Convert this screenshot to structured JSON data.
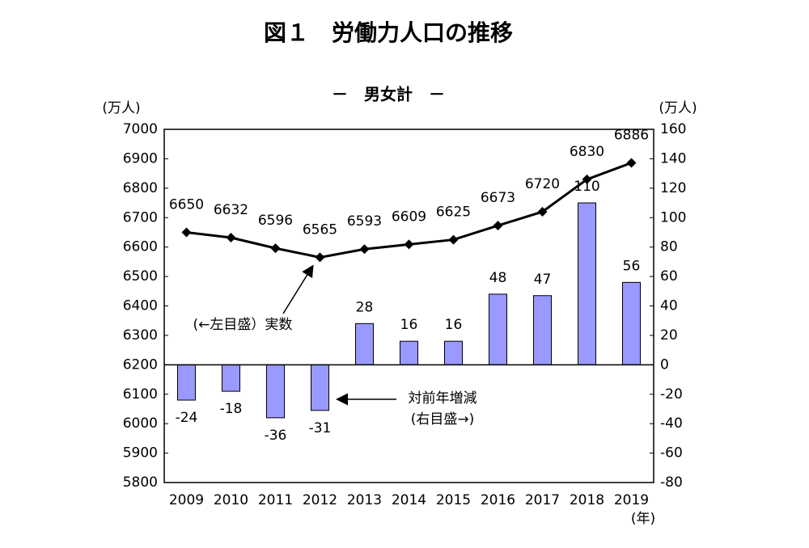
{
  "chart_data": {
    "type": "bar-line",
    "title": "図１　労働力人口の推移",
    "subtitle": "－　男女計　－",
    "ylabel": "(万人)",
    "y2label": "(万人)",
    "xlabel": "(年)",
    "categories": [
      "2009",
      "2010",
      "2011",
      "2012",
      "2013",
      "2014",
      "2015",
      "2016",
      "2017",
      "2018",
      "2019"
    ],
    "series": [
      {
        "type": "line",
        "color": "#000000",
        "axis": "y",
        "values": [
          6650,
          6632,
          6596,
          6565,
          6593,
          6609,
          6625,
          6673,
          6720,
          6830,
          6886
        ]
      },
      {
        "type": "bar",
        "color": "#9999ff",
        "axis": "y2",
        "values": [
          -24,
          -18,
          -36,
          -31,
          28,
          16,
          16,
          48,
          47,
          110,
          56
        ]
      }
    ],
    "ylim": [
      5800,
      7000
    ],
    "yticks": [
      5800,
      5900,
      6000,
      6100,
      6200,
      6300,
      6400,
      6500,
      6600,
      6700,
      6800,
      6900,
      7000
    ],
    "y2lim": [
      -80,
      160
    ],
    "y2ticks": [
      -80,
      -60,
      -40,
      -20,
      0,
      20,
      40,
      60,
      80,
      100,
      120,
      140,
      160
    ],
    "annotations": [
      "(←左目盛）実数",
      "対前年増減",
      "(右目盛→)"
    ]
  }
}
